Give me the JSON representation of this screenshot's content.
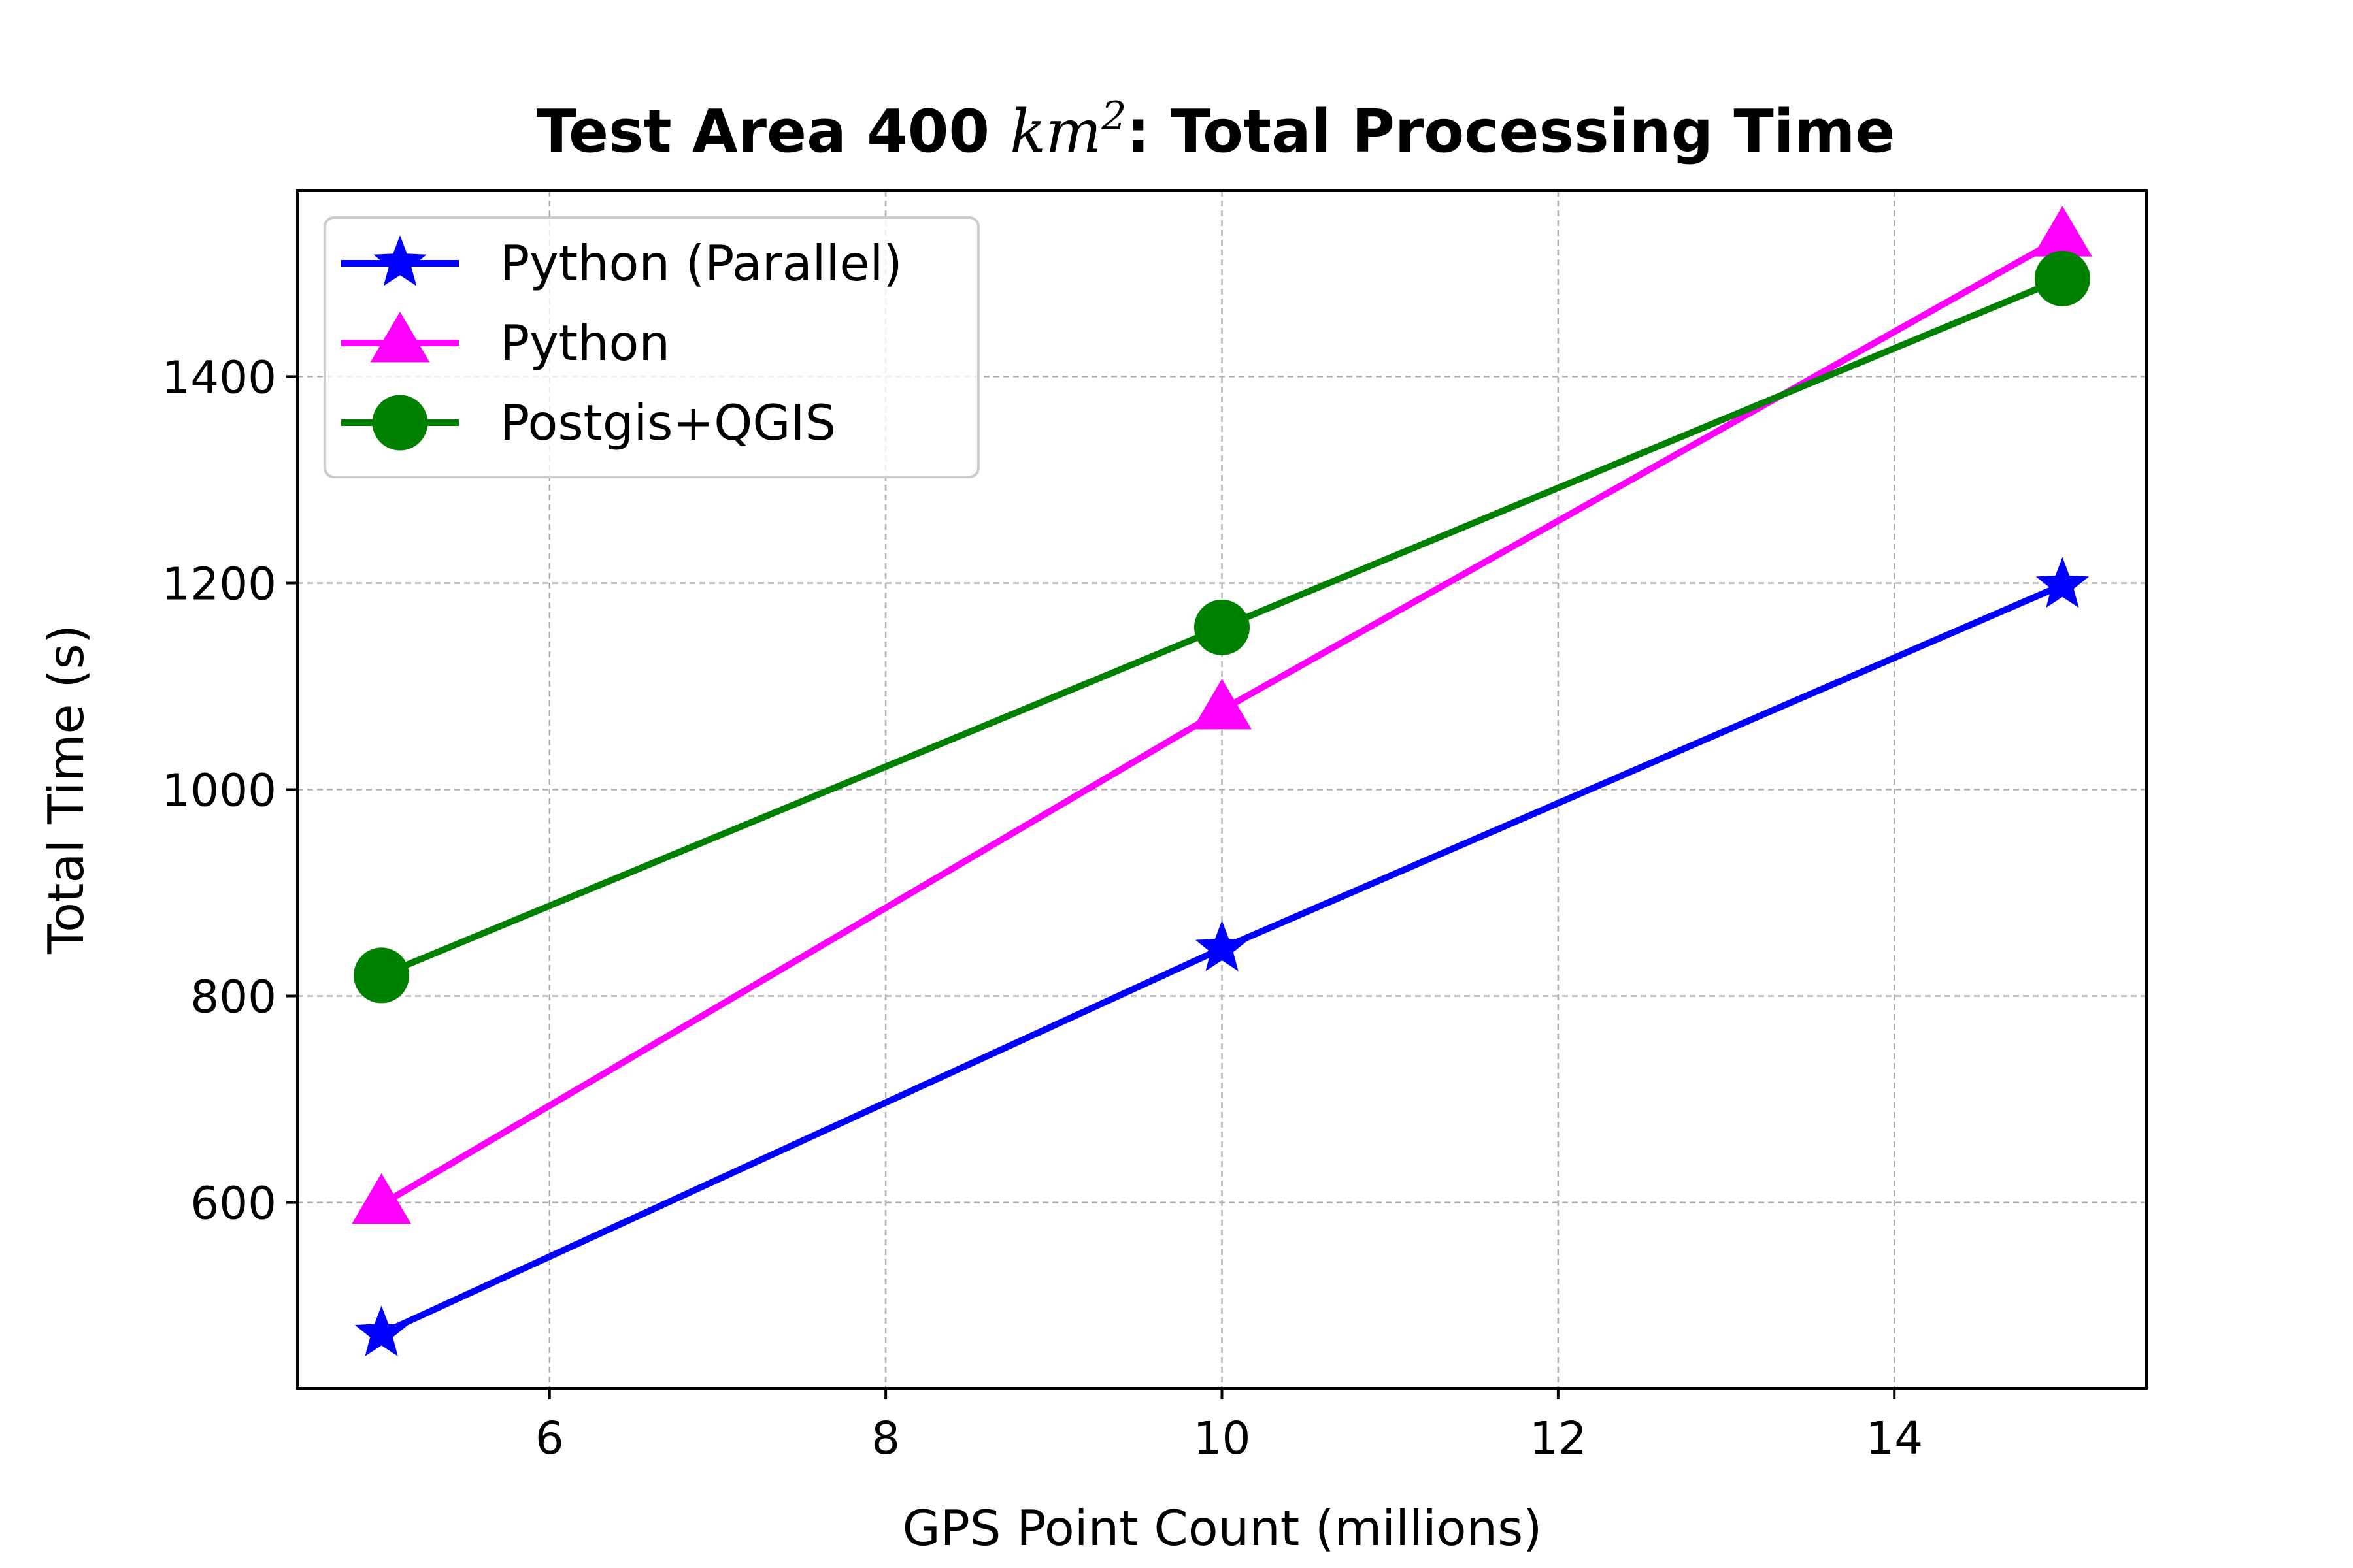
{
  "chart_data": {
    "type": "line",
    "title_prefix": "Test Area 400 ",
    "title_unit_base": "km",
    "title_unit_exp": "2",
    "title_suffix": ": Total Processing Time",
    "xlabel": "GPS Point Count (millions)",
    "ylabel": "Total Time (s)",
    "xlim": [
      4.5,
      15.5
    ],
    "ylim": [
      420,
      1580
    ],
    "xticks": [
      6,
      8,
      10,
      12,
      14
    ],
    "yticks": [
      600,
      800,
      1000,
      1200,
      1400
    ],
    "xtick_labels": [
      "6",
      "8",
      "10",
      "12",
      "14"
    ],
    "ytick_labels": [
      "600",
      "800",
      "1000",
      "1200",
      "1400"
    ],
    "grid": true,
    "legend_position": "top-left",
    "x": [
      5,
      10,
      15
    ],
    "series": [
      {
        "name": "Python (Parallel)",
        "values": [
          473,
          846,
          1198
        ],
        "color": "#0000ff",
        "marker": "star"
      },
      {
        "name": "Python",
        "values": [
          598,
          1077,
          1535
        ],
        "color": "#ff00ff",
        "marker": "triangle"
      },
      {
        "name": "Postgis+QGIS",
        "values": [
          820,
          1157,
          1495
        ],
        "color": "#008000",
        "marker": "circle"
      }
    ]
  }
}
